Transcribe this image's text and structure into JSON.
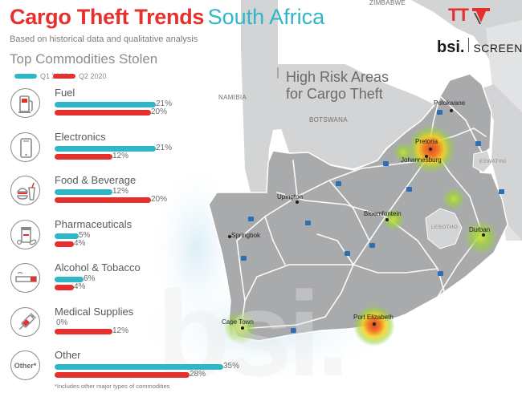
{
  "title_main": "Cargo Theft Trends",
  "title_region": "South Africa",
  "subtitle": "Based on historical data and qualitative analysis",
  "logos": {
    "tt": "TT",
    "bsi": "bsi.",
    "screen": "SCREEN"
  },
  "map": {
    "title_line1": "High Risk Areas",
    "title_line2": "for Cargo Theft",
    "countries": [
      "NAMIBIA",
      "BOTSWANA",
      "ZIMBABWE",
      "ESWATINI",
      "LESOTHO"
    ],
    "cities": [
      "Polokwane",
      "Pretoria",
      "Johannesburg",
      "Upington",
      "Bloemfontein",
      "Springbok",
      "Durban",
      "Cape Town",
      "Port Elizabeth"
    ],
    "colors": {
      "land": "#a9aaac",
      "neighbor": "#d3d4d5",
      "road": "#ffffff",
      "route_badge": "#2c6fb3",
      "hotspot_high": "#e8402a",
      "hotspot_mid": "#f5d31c",
      "hotspot_low": "#9bd23c"
    }
  },
  "chart_data": {
    "type": "bar",
    "orientation": "horizontal",
    "title": "Top Commodities Stolen",
    "categories": [
      "Fuel",
      "Electronics",
      "Food & Beverage",
      "Pharmaceuticals",
      "Alcohol & Tobacco",
      "Medical Supplies",
      "Other"
    ],
    "value_labels": {
      "Q1 2020": [
        "21%",
        "21%",
        "12%",
        "5%",
        "6%",
        "0%",
        "35%"
      ],
      "Q2 2020": [
        "20%",
        "12%",
        "20%",
        "4%",
        "4%",
        "12%",
        "28%"
      ]
    },
    "series": [
      {
        "name": "Q1 2020",
        "color": "#2fb6c7",
        "values": [
          21,
          21,
          12,
          5,
          6,
          0,
          35
        ]
      },
      {
        "name": "Q2 2020",
        "color": "#e5312d",
        "values": [
          20,
          12,
          20,
          4,
          4,
          12,
          28
        ]
      }
    ],
    "unit": "%",
    "icons": [
      "fuel-pump-icon",
      "smartphone-icon",
      "food-beverage-icon",
      "pills-icon",
      "cigarette-icon",
      "syringe-icon",
      "other-text-icon"
    ],
    "other_icon_text": "Other*",
    "footnote": "*Includes other major types of commodities",
    "legend_position": "top"
  }
}
